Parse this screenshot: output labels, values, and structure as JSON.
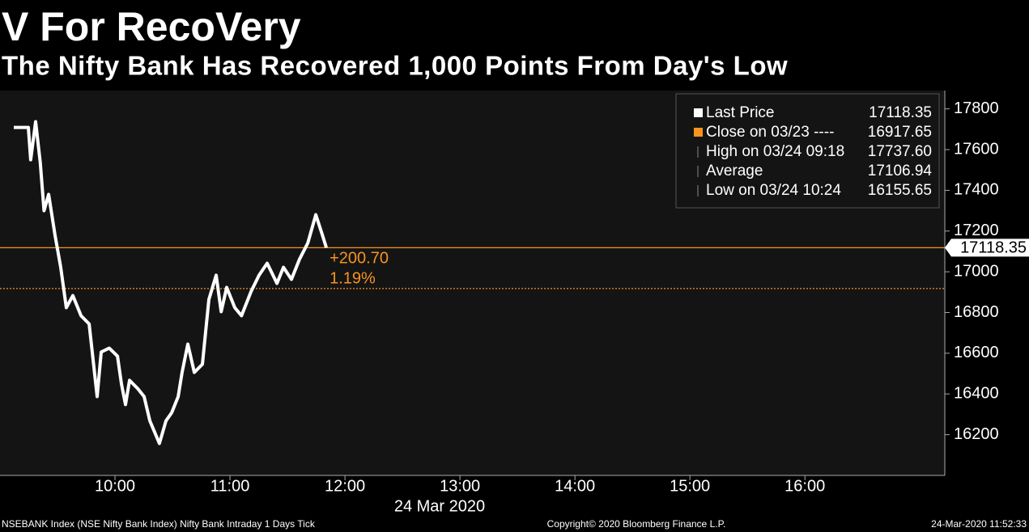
{
  "chart_data": {
    "type": "line",
    "title": "V For RecoVery",
    "subtitle": "The Nifty Bank Has Recovered 1,000 Points From Day's Low",
    "x": [
      547.2,
      554.8,
      556,
      558.6,
      561,
      563,
      565.4,
      568.7,
      571.7,
      574.6,
      578,
      582.3,
      586.5,
      590.7,
      592.8,
      597,
      601.3,
      603.4,
      605.5,
      607.6,
      611.8,
      615.2,
      618.2,
      623.2,
      626.6,
      629.6,
      633,
      635,
      638,
      641.4,
      645.6,
      649,
      652.8,
      655.4,
      658.3,
      662.5,
      666,
      671,
      675.2,
      679.4,
      684.5,
      687.9,
      692.1,
      696.3,
      700.6,
      704.8,
      708.2,
      710.3
    ],
    "series": [
      {
        "name": "Last Price",
        "color": "#ffffff",
        "values": [
          17709,
          17709,
          17550,
          17737,
          17538,
          17300,
          17380,
          17181,
          17022,
          16824,
          16883,
          16784,
          16744,
          16387,
          16606,
          16625,
          16586,
          16447,
          16348,
          16467,
          16427,
          16387,
          16268,
          16157,
          16268,
          16308,
          16387,
          16506,
          16645,
          16506,
          16546,
          16864,
          16983,
          16804,
          16923,
          16824,
          16784,
          16903,
          16983,
          17042,
          16943,
          17022,
          16963,
          17062,
          17141,
          17280,
          17181,
          17118
        ]
      }
    ],
    "xlim": [
      540,
      1033
    ],
    "xticks": [
      {
        "value": 600,
        "label": "10:00"
      },
      {
        "value": 660,
        "label": "11:00"
      },
      {
        "value": 720,
        "label": "12:00"
      },
      {
        "value": 780,
        "label": "13:00"
      },
      {
        "value": 840,
        "label": "14:00"
      },
      {
        "value": 900,
        "label": "15:00"
      },
      {
        "value": 960,
        "label": "16:00"
      }
    ],
    "xlabel": "24 Mar 2020",
    "ylim": [
      16000,
      17890
    ],
    "yticks": [
      16200,
      16400,
      16600,
      16800,
      17000,
      17200,
      17400,
      17600,
      17800
    ],
    "legend": [
      {
        "label": "Last Price",
        "value": 17118.35,
        "color": "#ffffff",
        "reference_line": "solid"
      },
      {
        "label": "Close on 03/23 ----",
        "value": 16917.65,
        "color": "#f7941d",
        "reference_line": "dotted"
      },
      {
        "label": "High on 03/24 09:18",
        "value": 17737.6,
        "value_label": "17737.60"
      },
      {
        "label": "Average",
        "value": 17106.94
      },
      {
        "label": "Low on 03/24 10:24",
        "value": 16155.65
      }
    ],
    "reference_color": "#f7941d",
    "change": {
      "value": 200.7,
      "label": "+200.70"
    },
    "change_pct": {
      "value": 1.19,
      "label": "1.19%"
    },
    "footer": {
      "left": "NSEBANK Index (NSE Nifty Bank Index) Nifty Bank Intraday 1 Days  Tick",
      "center": "Copyright© 2020 Bloomberg Finance L.P.",
      "right": "24-Mar-2020 11:52:33"
    }
  }
}
